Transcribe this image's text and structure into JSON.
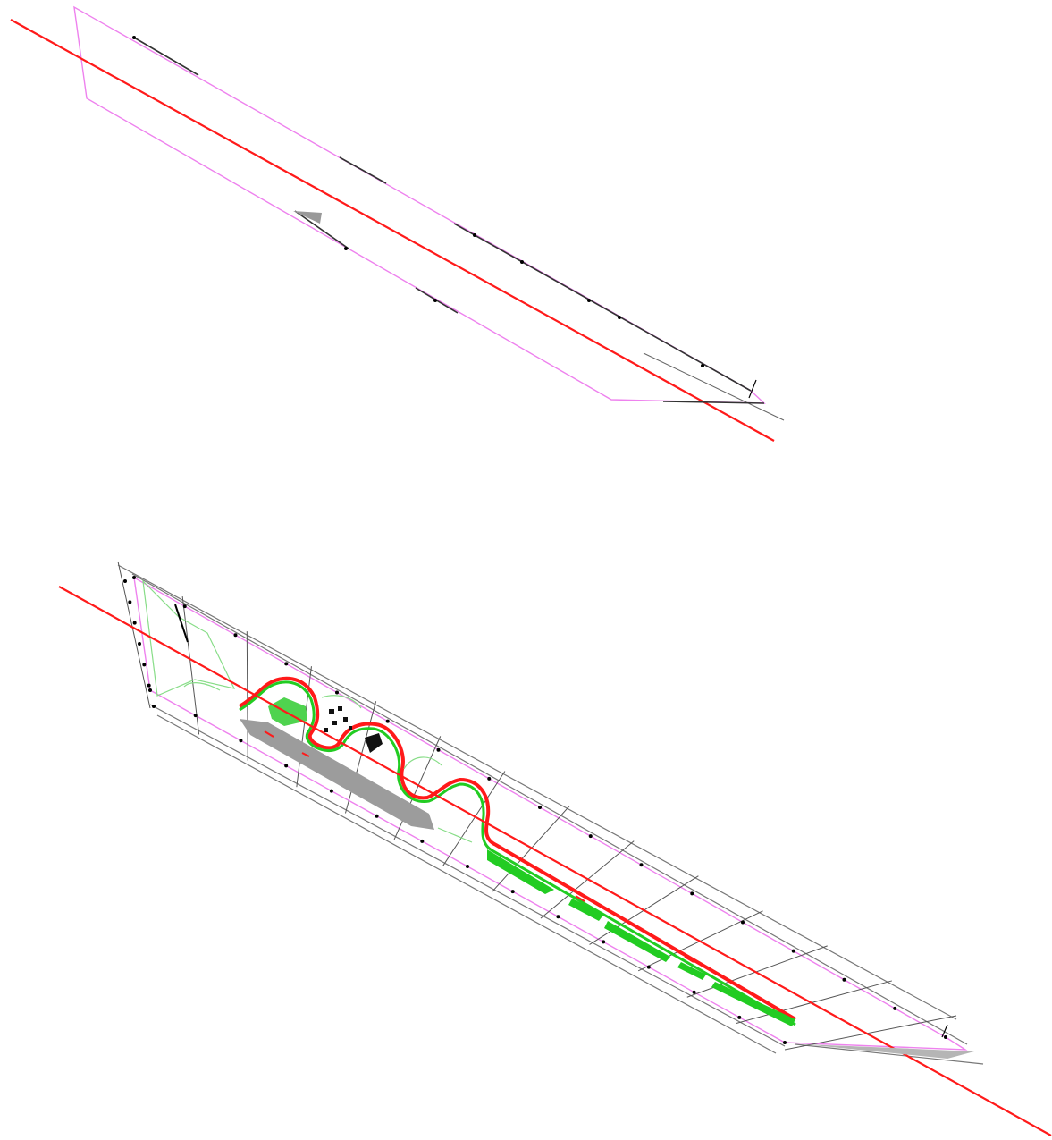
{
  "colors": {
    "background": "#ffffff",
    "centerline": "#ff1a1a",
    "boundary": "#ee82ee",
    "grid": "#555555",
    "planting": "#22cc22",
    "planting_light": "#88dd88",
    "paving": "#999999",
    "marker": "#000000"
  },
  "views": [
    {
      "id": "upper-plan",
      "description_visible": false
    },
    {
      "id": "lower-plan",
      "description_visible": false
    }
  ]
}
